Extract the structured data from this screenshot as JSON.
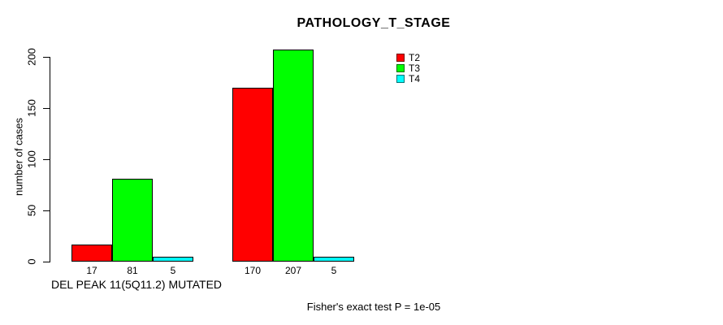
{
  "chart_data": {
    "type": "bar",
    "title": "PATHOLOGY_T_STAGE",
    "ylabel": "number of cases",
    "xlabel": "",
    "ylim": [
      0,
      207
    ],
    "yticks": [
      0,
      50,
      100,
      150,
      200
    ],
    "grid": false,
    "legend_position": "top-right",
    "categories": [
      "DEL PEAK 11(5Q11.2) MUTATED",
      ""
    ],
    "series": [
      {
        "name": "T2",
        "color": "#FF0000",
        "values": [
          17,
          170
        ]
      },
      {
        "name": "T3",
        "color": "#00FF00",
        "values": [
          81,
          207
        ]
      },
      {
        "name": "T4",
        "color": "#00FFFF",
        "values": [
          5,
          5
        ]
      }
    ],
    "bar_value_labels": [
      [
        17,
        81,
        5
      ],
      [
        170,
        207,
        5
      ]
    ],
    "annotation": "Fisher's exact test P = 1e-05"
  },
  "colors": {
    "background": "#FFFFFF",
    "axis": "#000000",
    "bar_border": "#000000"
  }
}
